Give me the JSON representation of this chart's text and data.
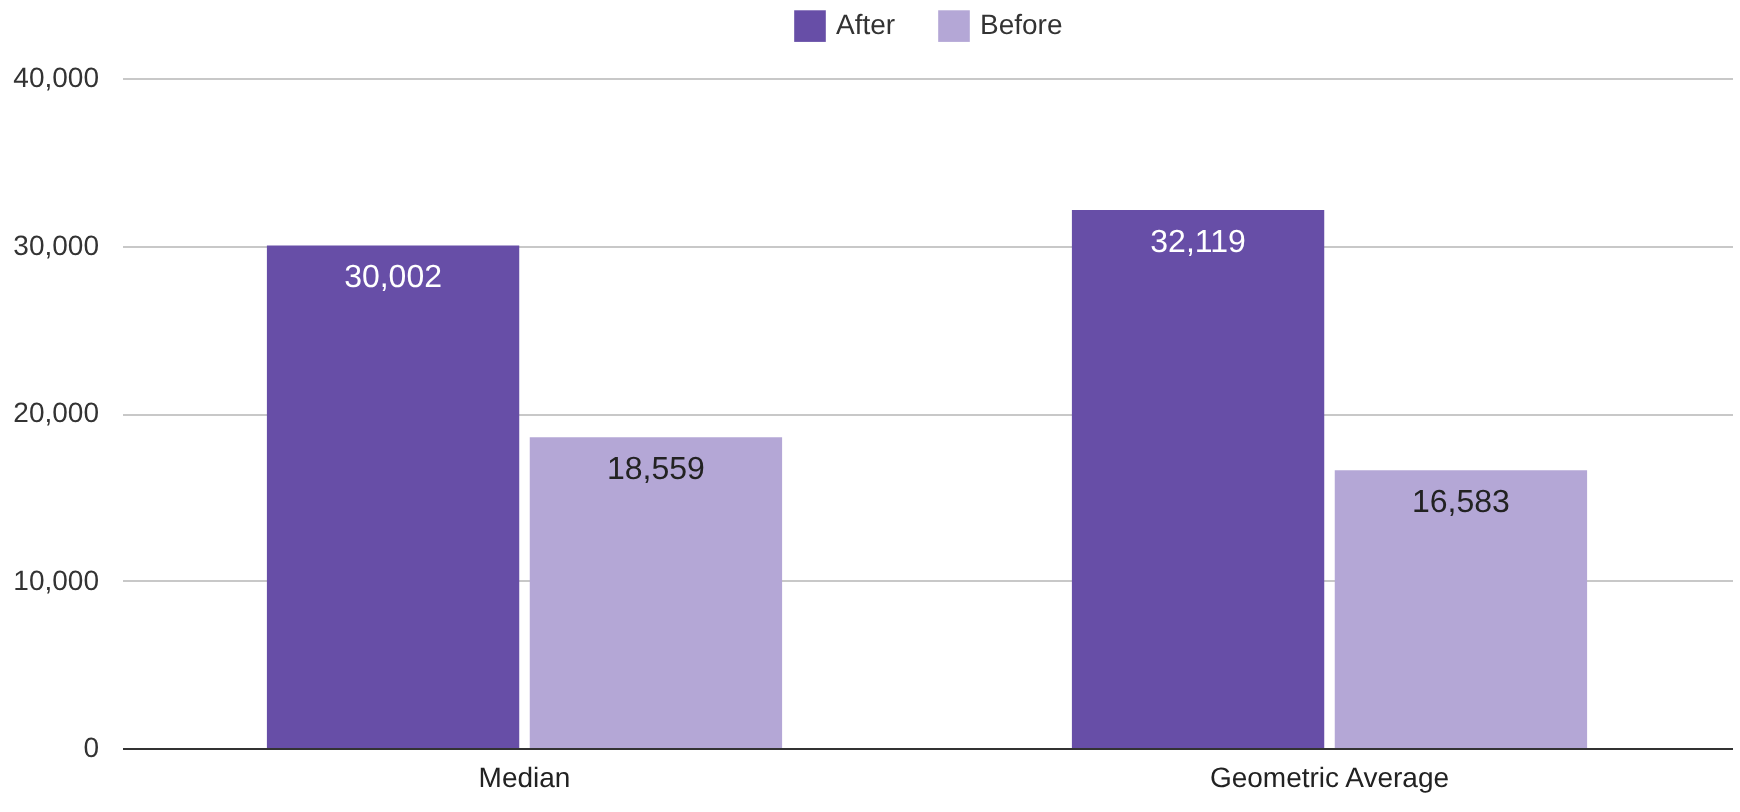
{
  "chart_data": {
    "type": "bar",
    "categories": [
      "Median",
      "Geometric Average"
    ],
    "series": [
      {
        "name": "After",
        "color": "#674ea7",
        "values": [
          30002,
          32119
        ],
        "value_labels": [
          "30,002",
          "32,119"
        ]
      },
      {
        "name": "Before",
        "color": "#b4a7d6",
        "values": [
          18559,
          16583
        ],
        "value_labels": [
          "18,559",
          "16,583"
        ]
      }
    ],
    "ylim": [
      0,
      40000
    ],
    "yticks": [
      0,
      {
        "value": 10000,
        "label": "10,000"
      },
      {
        "value": 20000,
        "label": "20,000"
      },
      {
        "value": 30000,
        "label": "30,000"
      },
      {
        "value": 40000,
        "label": "40,000"
      }
    ],
    "grid": "y",
    "legend": "top"
  }
}
